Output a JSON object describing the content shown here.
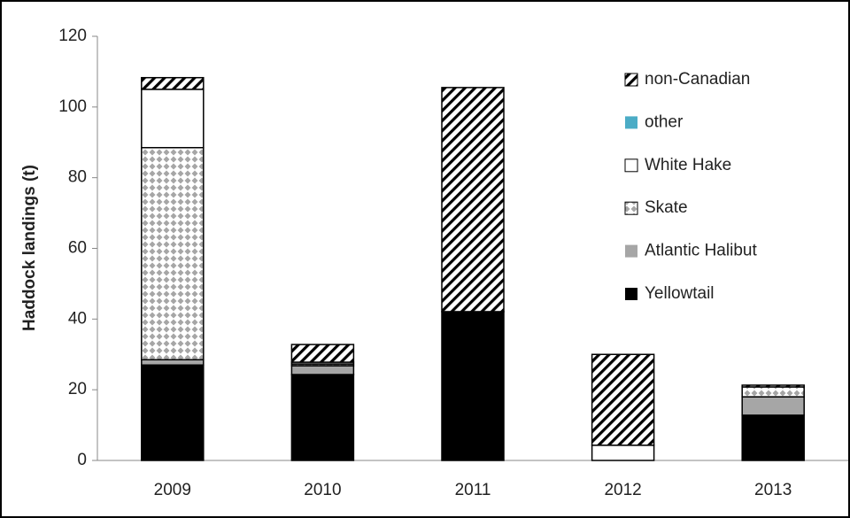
{
  "chart_data": {
    "type": "stacked-bar",
    "y_label": "Haddock landings (t)",
    "categories": [
      "2009",
      "2010",
      "2011",
      "2012",
      "2013"
    ],
    "series": [
      {
        "name": "Yellowtail",
        "color": "#000000",
        "values": [
          27,
          24.3,
          42.1,
          0,
          12.8
        ]
      },
      {
        "name": "Atlantic Halibut",
        "color": "#a6a6a6",
        "values": [
          1.5,
          2.5,
          0,
          0,
          5.2
        ]
      },
      {
        "name": "Skate",
        "color": "#a6a6a6",
        "pattern": "checker",
        "values": [
          60,
          0.5,
          0,
          0,
          2.8
        ]
      },
      {
        "name": "White Hake",
        "color": "#ffffff",
        "values": [
          16.5,
          0.5,
          0,
          4.3,
          0
        ]
      },
      {
        "name": "other",
        "color": "#4bacc6",
        "values": [
          0,
          0,
          0,
          0,
          0
        ]
      },
      {
        "name": "non-Canadian",
        "color": "#000000",
        "pattern": "hatch",
        "values": [
          3.3,
          5,
          63.4,
          25.7,
          0.5
        ]
      }
    ],
    "ylim": [
      0,
      120
    ],
    "yticks": [
      0,
      20,
      40,
      60,
      80,
      100,
      120
    ],
    "grid": false,
    "legend": "right"
  }
}
